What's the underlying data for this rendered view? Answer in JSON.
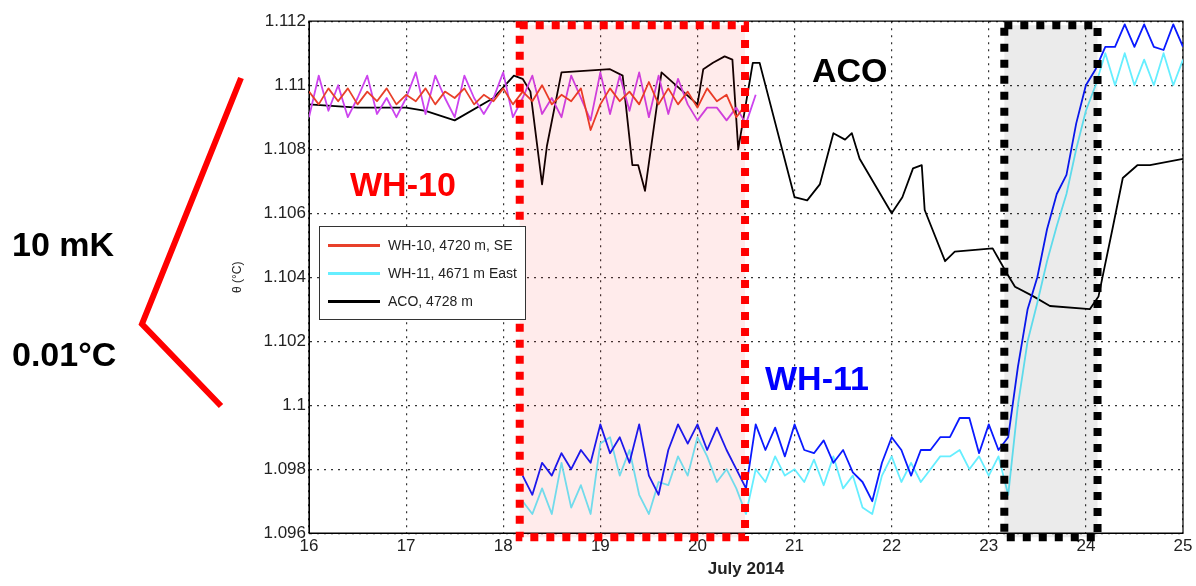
{
  "chart_data": {
    "type": "line",
    "xlabel": "July 2014",
    "ylabel": "θ (°C)",
    "xlim": [
      16,
      25
    ],
    "xticks": [
      16,
      17,
      18,
      19,
      20,
      21,
      22,
      23,
      24,
      25
    ],
    "ylim": [
      1.096,
      1.112
    ],
    "yticks": [
      1.096,
      1.098,
      1.1,
      1.102,
      1.104,
      1.106,
      1.108,
      1.11,
      1.112
    ],
    "grid": true,
    "legend": "left",
    "bands": [
      {
        "axis": "x",
        "from": 18.17,
        "to": 20.49,
        "color": "#ff0000"
      },
      {
        "axis": "x",
        "from": 23.16,
        "to": 24.12,
        "color": "#000000"
      }
    ],
    "annotations": [
      "WH-10",
      "WH-11",
      "ACO",
      "10 mK",
      "0.01°C"
    ],
    "series": [
      {
        "name": "WH-10, 4720 m, SE",
        "color": "#e8402a",
        "x": [
          16.0,
          16.1,
          16.2,
          16.3,
          16.4,
          16.5,
          16.6,
          16.7,
          16.8,
          16.9,
          17.0,
          17.1,
          17.2,
          17.3,
          17.4,
          17.5,
          17.6,
          17.7,
          17.8,
          17.9,
          18.0,
          18.1,
          18.2,
          18.3,
          18.4,
          18.5,
          18.6,
          18.7,
          18.8,
          18.9,
          19.0,
          19.1,
          19.2,
          19.3,
          19.4,
          19.5,
          19.6,
          19.7,
          19.8,
          19.9,
          20.0,
          20.1,
          20.2,
          20.3,
          20.4,
          20.5
        ],
        "values": [
          1.1098,
          1.1094,
          1.1099,
          1.1095,
          1.1099,
          1.1094,
          1.1098,
          1.1095,
          1.1099,
          1.1094,
          1.1097,
          1.1095,
          1.1099,
          1.1094,
          1.1098,
          1.1096,
          1.1099,
          1.1094,
          1.1097,
          1.1095,
          1.1099,
          1.1094,
          1.1098,
          1.1095,
          1.11,
          1.1094,
          1.1097,
          1.1095,
          1.1099,
          1.1086,
          1.1094,
          1.1099,
          1.1095,
          1.1098,
          1.1094,
          1.1101,
          1.1094,
          1.1099,
          1.1094,
          1.1098,
          1.1093,
          1.1099,
          1.1095,
          1.1097,
          1.109,
          1.1094
        ]
      },
      {
        "color": "#cc44ee",
        "x": [
          16.0,
          16.1,
          16.2,
          16.3,
          16.4,
          16.5,
          16.6,
          16.7,
          16.8,
          16.9,
          17.0,
          17.1,
          17.2,
          17.3,
          17.4,
          17.5,
          17.6,
          17.7,
          17.8,
          17.9,
          18.0,
          18.1,
          18.2,
          18.3,
          18.4,
          18.5,
          18.6,
          18.7,
          18.8,
          18.9,
          19.0,
          19.1,
          19.2,
          19.3,
          19.4,
          19.5,
          19.6,
          19.7,
          19.8,
          19.9,
          20.0,
          20.1,
          20.2,
          20.3,
          20.4,
          20.5,
          20.6
        ],
        "values": [
          1.109,
          1.1103,
          1.1092,
          1.11,
          1.109,
          1.1096,
          1.1103,
          1.1091,
          1.1096,
          1.109,
          1.1096,
          1.1104,
          1.1091,
          1.1103,
          1.1096,
          1.109,
          1.1103,
          1.1096,
          1.1091,
          1.1096,
          1.1104,
          1.109,
          1.1096,
          1.1103,
          1.1091,
          1.1096,
          1.109,
          1.1103,
          1.1096,
          1.1089,
          1.1104,
          1.1091,
          1.1103,
          1.1092,
          1.1104,
          1.109,
          1.1103,
          1.1091,
          1.1102,
          1.1094,
          1.1089,
          1.1093,
          1.1093,
          1.1089,
          1.1093,
          1.1088,
          1.1097
        ]
      },
      {
        "color": "#0a1aff",
        "x": [
          18.2,
          18.3,
          18.4,
          18.5,
          18.6,
          18.7,
          18.8,
          18.9,
          19.0,
          19.1,
          19.2,
          19.3,
          19.4,
          19.5,
          19.6,
          19.7,
          19.8,
          19.9,
          20.0,
          20.1,
          20.2,
          20.3,
          20.4,
          20.5,
          20.6,
          20.7,
          20.8,
          20.9,
          21.0,
          21.1,
          21.2,
          21.3,
          21.4,
          21.5,
          21.6,
          21.7,
          21.8,
          21.9,
          22.0,
          22.1,
          22.2,
          22.3,
          22.4,
          22.5,
          22.6,
          22.7,
          22.8,
          22.9,
          23.0,
          23.1,
          23.2,
          23.3,
          23.4,
          23.5,
          23.6,
          23.7,
          23.8,
          23.9,
          24.0,
          24.1,
          24.2,
          24.3,
          24.4,
          24.5,
          24.6,
          24.7,
          24.8,
          24.9,
          25.0
        ],
        "values": [
          1.0978,
          1.0972,
          1.0982,
          1.0978,
          1.0985,
          1.098,
          1.0986,
          1.0982,
          1.0994,
          1.0985,
          1.099,
          1.0982,
          1.0994,
          1.0978,
          1.0972,
          1.0986,
          1.0994,
          1.0988,
          1.0994,
          1.0986,
          1.0993,
          1.0986,
          1.098,
          1.0974,
          1.0994,
          1.0986,
          1.0993,
          1.0984,
          1.0994,
          1.0986,
          1.0985,
          1.0989,
          1.0982,
          1.0986,
          1.0979,
          1.0976,
          1.097,
          1.0982,
          1.099,
          1.0986,
          1.0978,
          1.0986,
          1.0986,
          1.099,
          1.099,
          1.0996,
          1.0996,
          1.0985,
          1.0994,
          1.0986,
          1.099,
          1.1012,
          1.103,
          1.104,
          1.1055,
          1.1066,
          1.1072,
          1.1088,
          1.11,
          1.1105,
          1.1112,
          1.1112,
          1.1119,
          1.1112,
          1.1119,
          1.1112,
          1.1111,
          1.1119,
          1.1112
        ]
      },
      {
        "name": "WH-11, 4671 m East",
        "color": "#66eeff",
        "x": [
          18.2,
          18.3,
          18.4,
          18.5,
          18.6,
          18.7,
          18.8,
          18.9,
          19.0,
          19.1,
          19.2,
          19.3,
          19.4,
          19.5,
          19.6,
          19.7,
          19.8,
          19.9,
          20.0,
          20.1,
          20.2,
          20.3,
          20.4,
          20.5,
          20.6,
          20.7,
          20.8,
          20.9,
          21.0,
          21.1,
          21.2,
          21.3,
          21.4,
          21.5,
          21.6,
          21.7,
          21.8,
          21.9,
          22.0,
          22.1,
          22.2,
          22.3,
          22.4,
          22.5,
          22.6,
          22.7,
          22.8,
          22.9,
          23.0,
          23.1,
          23.2,
          23.3,
          23.4,
          23.5,
          23.6,
          23.7,
          23.8,
          23.9,
          24.0,
          24.1,
          24.2,
          24.3,
          24.4,
          24.5,
          24.6,
          24.7,
          24.8,
          24.9,
          25.0
        ],
        "values": [
          1.097,
          1.0966,
          1.0974,
          1.0966,
          1.0982,
          1.0968,
          1.0975,
          1.0966,
          1.0988,
          1.099,
          1.0978,
          1.0986,
          1.0972,
          1.0966,
          1.0976,
          1.0975,
          1.0984,
          1.0978,
          1.099,
          1.0984,
          1.0976,
          1.098,
          1.0974,
          1.0966,
          1.098,
          1.0976,
          1.0984,
          1.0978,
          1.098,
          1.0976,
          1.0983,
          1.0975,
          1.0984,
          1.0974,
          1.0978,
          1.0968,
          1.0966,
          1.0978,
          1.0984,
          1.0976,
          1.0982,
          1.0976,
          1.098,
          1.0984,
          1.0984,
          1.0986,
          1.098,
          1.0984,
          1.0978,
          1.0984,
          1.0972,
          1.1,
          1.102,
          1.1032,
          1.1045,
          1.1056,
          1.1066,
          1.108,
          1.1092,
          1.11,
          1.111,
          1.11,
          1.111,
          1.11,
          1.1108,
          1.11,
          1.111,
          1.11,
          1.1108
        ]
      },
      {
        "name": "ACO, 4728 m",
        "color": "#000000",
        "x": [
          16.0,
          16.5,
          17.0,
          17.2,
          17.5,
          17.9,
          18.11,
          18.2,
          18.28,
          18.4,
          18.45,
          18.6,
          19.1,
          19.23,
          19.33,
          19.39,
          19.46,
          19.63,
          20.0,
          20.06,
          20.16,
          20.28,
          20.36,
          20.42,
          20.57,
          20.64,
          21.0,
          21.13,
          21.26,
          21.4,
          21.52,
          21.59,
          21.67,
          22.0,
          22.11,
          22.22,
          22.31,
          22.34,
          22.55,
          22.65,
          23.04,
          23.19,
          23.27,
          23.46,
          23.63,
          24.04,
          24.13,
          24.28,
          24.38,
          24.53,
          24.66,
          25.0
        ],
        "values": [
          1.1094,
          1.1093,
          1.1093,
          1.1092,
          1.1089,
          1.1096,
          1.1103,
          1.1102,
          1.1098,
          1.1069,
          1.1081,
          1.1104,
          1.1105,
          1.1103,
          1.1075,
          1.1075,
          1.1067,
          1.1104,
          1.1094,
          1.1105,
          1.1107,
          1.1109,
          1.1108,
          1.108,
          1.1107,
          1.1107,
          1.1065,
          1.1064,
          1.1069,
          1.1085,
          1.1083,
          1.1085,
          1.1077,
          1.106,
          1.1065,
          1.1074,
          1.1075,
          1.1061,
          1.1045,
          1.1048,
          1.1049,
          1.1041,
          1.1037,
          1.1034,
          1.1031,
          1.103,
          1.1034,
          1.1056,
          1.1071,
          1.1075,
          1.1075,
          1.1077
        ]
      }
    ]
  }
}
